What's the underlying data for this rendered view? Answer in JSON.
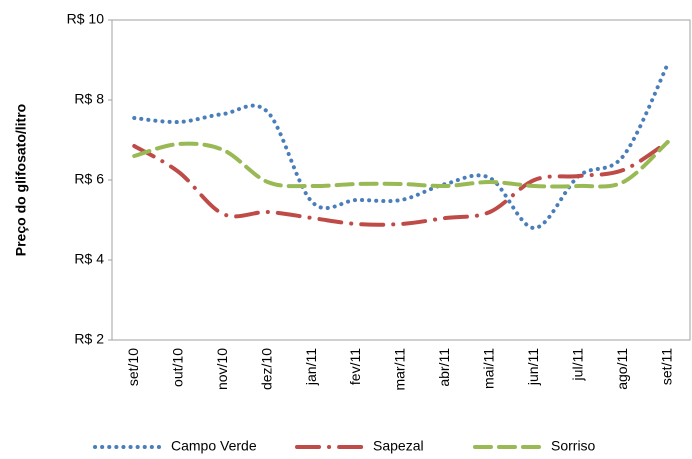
{
  "chart_data": {
    "type": "line",
    "y_label": "Preço do glifosato/litro",
    "categories": [
      "set/10",
      "out/10",
      "nov/10",
      "dez/10",
      "jan/11",
      "fev/11",
      "mar/11",
      "abr/11",
      "mai/11",
      "jun/11",
      "jul/11",
      "ago/11",
      "set/11"
    ],
    "series": [
      {
        "name": "Campo Verde",
        "color": "#4a7ebb",
        "values": [
          7.55,
          7.45,
          7.65,
          7.7,
          5.45,
          5.5,
          5.5,
          5.9,
          6.05,
          4.8,
          6.1,
          6.6,
          8.9
        ]
      },
      {
        "name": "Sapezal",
        "color": "#be4b48",
        "values": [
          6.85,
          6.2,
          5.15,
          5.2,
          5.05,
          4.9,
          4.9,
          5.05,
          5.2,
          6.0,
          6.1,
          6.25,
          6.95
        ]
      },
      {
        "name": "Sorriso",
        "color": "#98b954",
        "values": [
          6.6,
          6.9,
          6.75,
          5.95,
          5.85,
          5.9,
          5.9,
          5.85,
          5.95,
          5.85,
          5.85,
          5.95,
          6.95
        ]
      }
    ],
    "ylim": [
      2,
      10
    ],
    "yticks": [
      {
        "value": 2,
        "label": "R$ 2"
      },
      {
        "value": 4,
        "label": "R$ 4"
      },
      {
        "value": 6,
        "label": "R$ 6"
      },
      {
        "value": 8,
        "label": "R$ 8"
      },
      {
        "value": 10,
        "label": "R$ 10"
      }
    ]
  }
}
